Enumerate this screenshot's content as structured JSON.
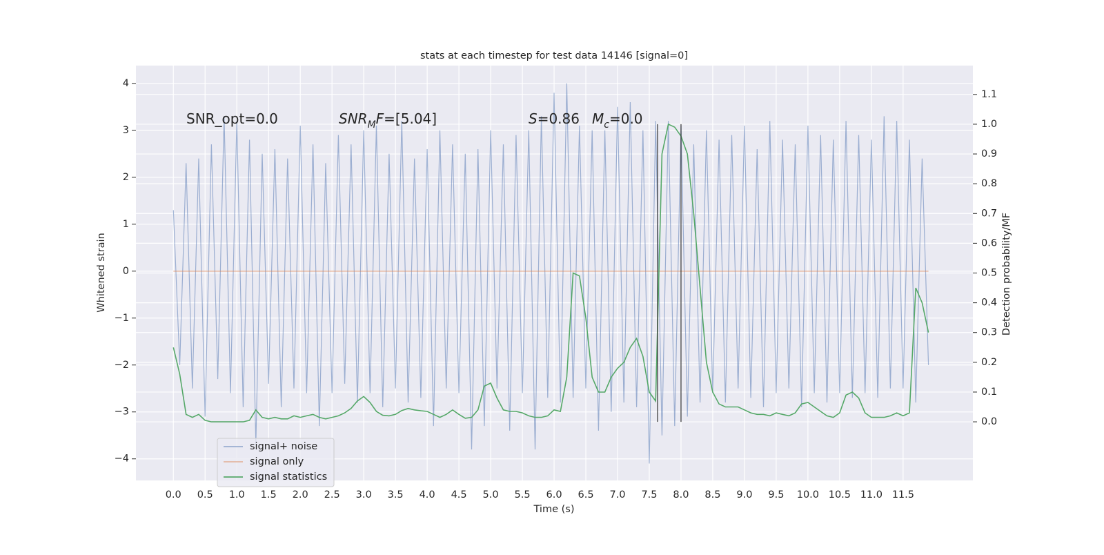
{
  "chart_data": {
    "type": "line",
    "title": "stats at each timestep for test data 14146 [signal=0]",
    "x_label": "Time (s)",
    "y_label": "Whitened strain",
    "y2_label": "Detection probability/MF",
    "annotations": [
      [
        {
          "text": "SNR_opt=0.0"
        }
      ],
      [
        {
          "text": "SNR",
          "italic": true
        },
        {
          "text": "M",
          "italic": true,
          "sub": true
        },
        {
          "text": "F",
          "italic": true
        },
        {
          "text": "=[5.04]"
        }
      ],
      [
        {
          "text": "S",
          "italic": true
        },
        {
          "text": "=0.86"
        }
      ],
      [
        {
          "text": "M",
          "italic": true
        },
        {
          "text": "c",
          "italic": true,
          "sub": true
        },
        {
          "text": "=0.0"
        }
      ]
    ],
    "x": [
      0,
      0.1,
      0.2,
      0.3,
      0.4,
      0.5,
      0.6,
      0.7,
      0.8,
      0.9,
      1,
      1.1,
      1.2,
      1.3,
      1.4,
      1.5,
      1.6,
      1.7,
      1.8,
      1.9,
      2,
      2.1,
      2.2,
      2.3,
      2.4,
      2.5,
      2.6,
      2.7,
      2.8,
      2.9,
      3,
      3.1,
      3.2,
      3.3,
      3.4,
      3.5,
      3.6,
      3.7,
      3.8,
      3.9,
      4,
      4.1,
      4.2,
      4.3,
      4.4,
      4.5,
      4.6,
      4.7,
      4.8,
      4.9,
      5,
      5.1,
      5.2,
      5.3,
      5.4,
      5.5,
      5.6,
      5.7,
      5.8,
      5.9,
      6,
      6.1,
      6.2,
      6.3,
      6.4,
      6.5,
      6.6,
      6.7,
      6.8,
      6.9,
      7,
      7.1,
      7.2,
      7.3,
      7.4,
      7.5,
      7.6,
      7.7,
      7.8,
      7.9,
      8,
      8.1,
      8.2,
      8.3,
      8.4,
      8.5,
      8.6,
      8.7,
      8.8,
      8.9,
      9,
      9.1,
      9.2,
      9.3,
      9.4,
      9.5,
      9.6,
      9.7,
      9.8,
      9.9,
      10,
      10.1,
      10.2,
      10.3,
      10.4,
      10.5,
      10.6,
      10.7,
      10.8,
      10.9,
      11,
      11.1,
      11.2,
      11.3,
      11.4,
      11.5,
      11.6,
      11.7,
      11.8,
      11.9
    ],
    "series": [
      {
        "name": "signal+ noise",
        "color": "#4c72b0",
        "opacity": 0.5,
        "axis": "y",
        "values": [
          1.3,
          -2.0,
          2.3,
          -2.5,
          2.4,
          -3.1,
          2.7,
          -2.3,
          3.3,
          -2.6,
          3.2,
          -2.9,
          2.8,
          -3.7,
          2.5,
          -2.4,
          2.6,
          -2.9,
          2.4,
          -2.5,
          3.1,
          -2.6,
          2.7,
          -3.3,
          2.3,
          -2.6,
          2.9,
          -2.4,
          2.7,
          -2.8,
          3.0,
          -2.6,
          3.1,
          -2.9,
          2.5,
          -2.5,
          3.2,
          -2.8,
          2.4,
          -2.7,
          2.6,
          -3.3,
          3.0,
          -2.5,
          2.7,
          -2.6,
          2.5,
          -3.8,
          2.6,
          -3.3,
          3.0,
          -2.5,
          2.7,
          -3.4,
          2.9,
          -2.6,
          3.0,
          -3.8,
          3.3,
          -2.7,
          3.8,
          -2.8,
          4.0,
          -2.7,
          3.1,
          -2.5,
          3.0,
          -3.4,
          3.0,
          -3.0,
          3.5,
          -2.8,
          3.6,
          -2.9,
          3.0,
          -4.1,
          3.2,
          -3.5,
          3.2,
          -3.3,
          3.1,
          -3.1,
          2.7,
          -2.8,
          3.0,
          -2.6,
          2.8,
          -2.8,
          2.9,
          -2.5,
          3.1,
          -2.7,
          2.6,
          -2.9,
          3.2,
          -2.6,
          2.8,
          -2.5,
          2.7,
          -2.9,
          3.1,
          -2.6,
          2.9,
          -2.8,
          2.8,
          -2.6,
          3.2,
          -2.7,
          2.9,
          -2.6,
          2.8,
          -2.7,
          3.3,
          -2.5,
          3.2,
          -2.5,
          2.8,
          -2.8,
          2.4,
          -2.0
        ]
      },
      {
        "name": "signal only",
        "color": "#dd8452",
        "opacity": 0.5,
        "axis": "y",
        "values": [
          0,
          0,
          0,
          0,
          0,
          0,
          0,
          0,
          0,
          0,
          0,
          0,
          0,
          0,
          0,
          0,
          0,
          0,
          0,
          0,
          0,
          0,
          0,
          0,
          0,
          0,
          0,
          0,
          0,
          0,
          0,
          0,
          0,
          0,
          0,
          0,
          0,
          0,
          0,
          0,
          0,
          0,
          0,
          0,
          0,
          0,
          0,
          0,
          0,
          0,
          0,
          0,
          0,
          0,
          0,
          0,
          0,
          0,
          0,
          0,
          0,
          0,
          0,
          0,
          0,
          0,
          0,
          0,
          0,
          0,
          0,
          0,
          0,
          0,
          0,
          0,
          0,
          0,
          0,
          0,
          0,
          0,
          0,
          0,
          0,
          0,
          0,
          0,
          0,
          0,
          0,
          0,
          0,
          0,
          0,
          0,
          0,
          0,
          0,
          0,
          0,
          0,
          0,
          0,
          0,
          0,
          0,
          0,
          0,
          0,
          0,
          0,
          0,
          0,
          0,
          0,
          0,
          0,
          0,
          0
        ]
      },
      {
        "name": "signal statistics",
        "color": "#55a868",
        "opacity": 1,
        "axis": "y2",
        "values": [
          0.25,
          0.16,
          0.025,
          0.015,
          0.025,
          0.005,
          0,
          0,
          0,
          0,
          0,
          0,
          0.005,
          0.04,
          0.015,
          0.01,
          0.015,
          0.01,
          0.01,
          0.02,
          0.015,
          0.02,
          0.025,
          0.015,
          0.01,
          0.015,
          0.02,
          0.03,
          0.045,
          0.07,
          0.085,
          0.065,
          0.035,
          0.022,
          0.02,
          0.025,
          0.038,
          0.045,
          0.04,
          0.037,
          0.035,
          0.025,
          0.015,
          0.025,
          0.04,
          0.025,
          0.012,
          0.015,
          0.04,
          0.12,
          0.13,
          0.08,
          0.04,
          0.035,
          0.035,
          0.03,
          0.02,
          0.015,
          0.015,
          0.02,
          0.04,
          0.035,
          0.15,
          0.5,
          0.49,
          0.35,
          0.15,
          0.1,
          0.1,
          0.15,
          0.18,
          0.2,
          0.25,
          0.28,
          0.22,
          0.1,
          0.07,
          0.9,
          1.0,
          0.99,
          0.96,
          0.9,
          0.7,
          0.45,
          0.2,
          0.1,
          0.06,
          0.05,
          0.05,
          0.05,
          0.04,
          0.03,
          0.025,
          0.025,
          0.02,
          0.03,
          0.025,
          0.02,
          0.03,
          0.06,
          0.065,
          0.05,
          0.035,
          0.02,
          0.015,
          0.03,
          0.09,
          0.1,
          0.08,
          0.03,
          0.015,
          0.015,
          0.015,
          0.02,
          0.03,
          0.02,
          0.03,
          0.45,
          0.4,
          0.3
        ]
      }
    ],
    "vlines": {
      "x": [
        7.63,
        8.0
      ],
      "from": 0,
      "to": 1,
      "color": "#333333"
    },
    "xlim": [
      -0.59,
      12.6
    ],
    "ylim": [
      -4.46,
      4.38
    ],
    "y2lim": [
      -0.197,
      1.197
    ],
    "xticks": [
      {
        "value": 0,
        "label": "0.0"
      },
      0.5,
      {
        "value": 1,
        "label": "1.0"
      },
      1.5,
      {
        "value": 2,
        "label": "2.0"
      },
      2.5,
      {
        "value": 3,
        "label": "3.0"
      },
      3.5,
      {
        "value": 4,
        "label": "4.0"
      },
      4.5,
      {
        "value": 5,
        "label": "5.0"
      },
      5.5,
      {
        "value": 6,
        "label": "6.0"
      },
      6.5,
      {
        "value": 7,
        "label": "7.0"
      },
      7.5,
      {
        "value": 8,
        "label": "8.0"
      },
      8.5,
      {
        "value": 9,
        "label": "9.0"
      },
      9.5,
      {
        "value": 10,
        "label": "10.0"
      },
      10.5,
      {
        "value": 11,
        "label": "11.0"
      },
      11.5
    ],
    "yticks": [
      {
        "value": -4,
        "label": "−4"
      },
      {
        "value": -3,
        "label": "−3"
      },
      {
        "value": -2,
        "label": "−2"
      },
      {
        "value": -1,
        "label": "−1"
      },
      0,
      1,
      2,
      3,
      4
    ],
    "y2ticks": [
      {
        "value": 0,
        "label": "0.0"
      },
      0.1,
      0.2,
      0.3,
      0.4,
      0.5,
      0.6,
      0.7,
      0.8,
      0.9,
      {
        "value": 1,
        "label": "1.0"
      },
      1.1
    ],
    "grid": true,
    "legend": "lower left"
  }
}
